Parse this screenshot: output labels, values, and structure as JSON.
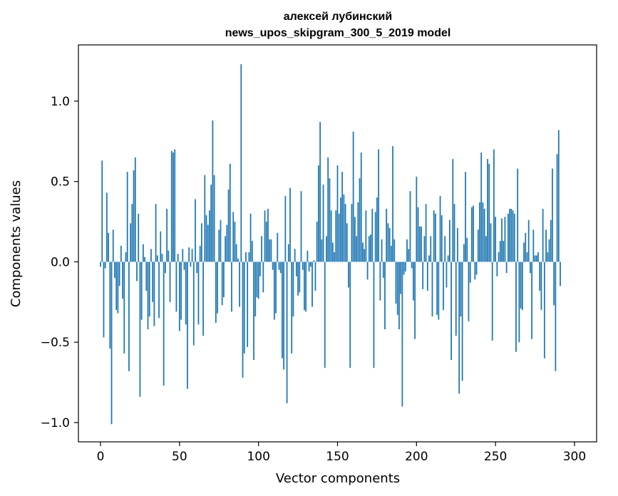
{
  "chart_data": {
    "type": "bar",
    "title_line1": "алексей лубинский",
    "title_line2": "news_upos_skipgram_300_5_2019 model",
    "xlabel": "Vector components",
    "ylabel": "Components values",
    "xlim": [
      -14,
      314
    ],
    "ylim": [
      -1.12,
      1.35
    ],
    "xticks": [
      0,
      50,
      100,
      150,
      200,
      250,
      300
    ],
    "yticks": [
      -1.0,
      -0.5,
      0.0,
      0.5,
      1.0
    ],
    "ytick_labels": [
      "−1.0",
      "−0.5",
      "0.0",
      "0.5",
      "1.0"
    ],
    "bar_color": "#1f77b4",
    "grid": false,
    "values": [
      -0.03,
      0.63,
      -0.47,
      -0.04,
      0.43,
      0.18,
      -0.54,
      -1.01,
      0.2,
      -0.1,
      -0.3,
      -0.32,
      -0.15,
      0.1,
      -0.23,
      -0.57,
      0.06,
      0.56,
      -0.68,
      0.24,
      0.36,
      0.57,
      0.65,
      -0.12,
      0.3,
      -0.84,
      -0.36,
      0.11,
      0.03,
      -0.18,
      -0.42,
      -0.34,
      0.08,
      -0.25,
      -0.4,
      0.36,
      0.04,
      -0.35,
      0.19,
      0.05,
      -0.77,
      -0.07,
      0.33,
      0.07,
      -0.25,
      0.69,
      0.68,
      0.7,
      -0.31,
      0.05,
      -0.43,
      -0.36,
      0.08,
      -0.05,
      -0.39,
      -0.79,
      0.09,
      -0.03,
      0.08,
      -0.52,
      0.39,
      -0.07,
      -0.39,
      0.1,
      0.24,
      -0.46,
      0.54,
      0.29,
      0.23,
      0.32,
      0.48,
      0.88,
      0.54,
      -0.38,
      -0.32,
      0.2,
      0.26,
      -0.27,
      -0.22,
      0.16,
      0.23,
      0.45,
      0.61,
      -0.31,
      0.31,
      0.25,
      0.11,
      0.02,
      -0.28,
      1.23,
      -0.72,
      -0.57,
      0.06,
      -0.53,
      0.06,
      0.3,
      0.13,
      -0.61,
      -0.34,
      -0.22,
      -0.23,
      -0.09,
      0.16,
      -0.19,
      0.32,
      0.25,
      0.33,
      0.14,
      0.14,
      -0.05,
      -0.36,
      -0.32,
      0.18,
      -0.05,
      -0.07,
      -0.6,
      -0.67,
      0.41,
      -0.88,
      0.11,
      0.46,
      -0.57,
      -0.34,
      0.08,
      -0.09,
      -0.21,
      -0.19,
      0.44,
      -0.05,
      -0.3,
      -0.31,
      0.07,
      -0.06,
      -0.03,
      -0.28,
      0.01,
      -0.18,
      0.25,
      0.6,
      0.87,
      0.14,
      0.48,
      -0.66,
      0.16,
      0.65,
      0.52,
      0.32,
      0.12,
      0.06,
      0.32,
      0.6,
      0.3,
      0.4,
      0.56,
      0.42,
      0.36,
      0.24,
      -0.16,
      -0.66,
      0.36,
      0.81,
      0.28,
      0.16,
      0.37,
      0.52,
      0.68,
      0.12,
      0.08,
      0.32,
      -0.11,
      0.16,
      0.17,
      0.33,
      -0.66,
      0.31,
      0.4,
      0.7,
      -0.24,
      0.14,
      -0.1,
      -0.42,
      0.33,
      0.24,
      0.21,
      0.1,
      0.72,
      0.14,
      -0.26,
      -0.33,
      -0.42,
      -0.2,
      -0.9,
      -0.08,
      -0.06,
      0.14,
      0.08,
      0.44,
      -0.04,
      -0.24,
      -0.48,
      0.53,
      0.34,
      0.22,
      0.22,
      -0.17,
      0.16,
      0.36,
      -0.18,
      0.04,
      0.16,
      -0.34,
      0.32,
      0.3,
      -0.33,
      -0.36,
      0.41,
      0.29,
      -0.3,
      0.16,
      -0.16,
      0.04,
      0.26,
      -0.61,
      0.64,
      0.36,
      -0.46,
      0.21,
      -0.82,
      -0.34,
      -0.74,
      0.11,
      0.56,
      0.15,
      -0.37,
      -0.13,
      0.34,
      0.35,
      -0.11,
      -0.08,
      0.2,
      0.37,
      0.68,
      0.37,
      0.33,
      0.16,
      0.64,
      0.61,
      0.24,
      -0.49,
      0.7,
      0.28,
      -0.09,
      0.06,
      0.13,
      0.27,
      0.13,
      0.28,
      -0.07,
      0.3,
      0.33,
      0.33,
      0.32,
      0.3,
      -0.56,
      0.58,
      -0.5,
      -0.29,
      -0.3,
      0.12,
      0.18,
      0.06,
      0.26,
      -0.07,
      -0.48,
      0.2,
      0.04,
      0.04,
      0.06,
      -0.18,
      -0.3,
      0.33,
      -0.6,
      0.2,
      0.06,
      0.14,
      0.26,
      0.58,
      -0.27,
      -0.68,
      0.67,
      0.82,
      -0.15
    ]
  }
}
